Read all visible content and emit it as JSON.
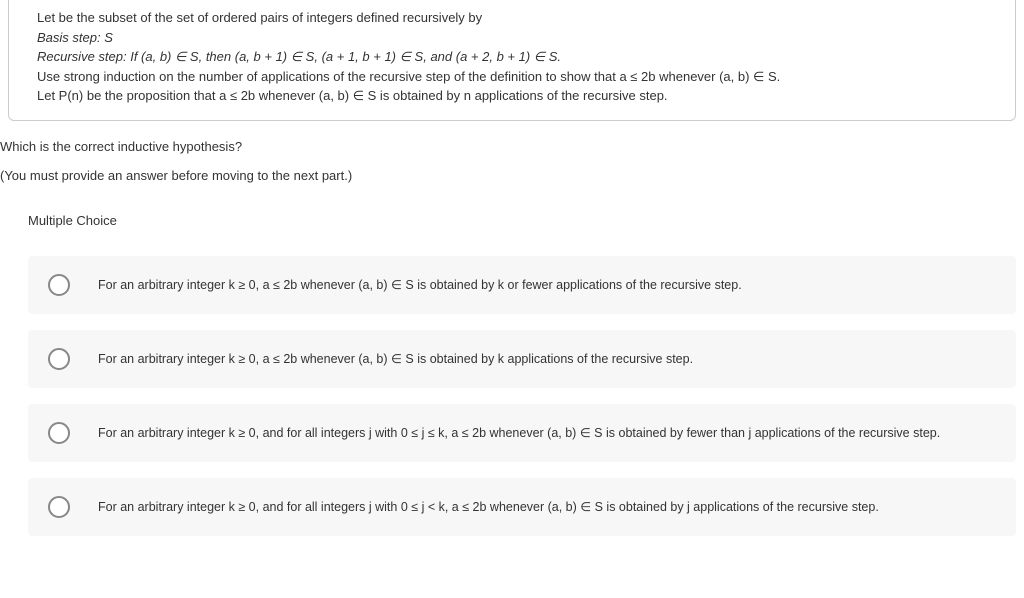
{
  "problem": {
    "line1": "Let be the subset of the set of ordered pairs of integers defined recursively by",
    "line2": "Basis step: S",
    "line3": "Recursive step: If (a, b) ∈ S, then (a, b + 1) ∈ S, (a + 1, b + 1) ∈ S, and (a + 2, b + 1) ∈ S.",
    "line4": "Use strong induction on the number of applications of the recursive step of the definition to show that a ≤ 2b whenever (a, b) ∈ S.",
    "line5": "Let P(n) be the proposition that a ≤ 2b whenever (a, b) ∈ S is obtained by n applications of the recursive step."
  },
  "question": {
    "prompt": "Which is the correct inductive hypothesis?",
    "note": "(You must provide an answer before moving to the next part.)"
  },
  "mc": {
    "label": "Multiple Choice",
    "options": [
      "For an arbitrary integer k ≥ 0, a ≤ 2b whenever (a, b) ∈ S is obtained by k or fewer applications of the recursive step.",
      "For an arbitrary integer k ≥ 0, a ≤ 2b whenever (a, b) ∈ S is obtained by k applications of the recursive step.",
      "For an arbitrary integer k ≥ 0, and for all integers j with 0 ≤ j ≤ k, a ≤ 2b whenever (a, b) ∈ S is obtained by fewer than j applications of the recursive step.",
      "For an arbitrary integer k ≥ 0, and for all integers j with 0 ≤ j < k, a ≤ 2b whenever (a, b) ∈ S is obtained by j applications of the recursive step."
    ]
  }
}
